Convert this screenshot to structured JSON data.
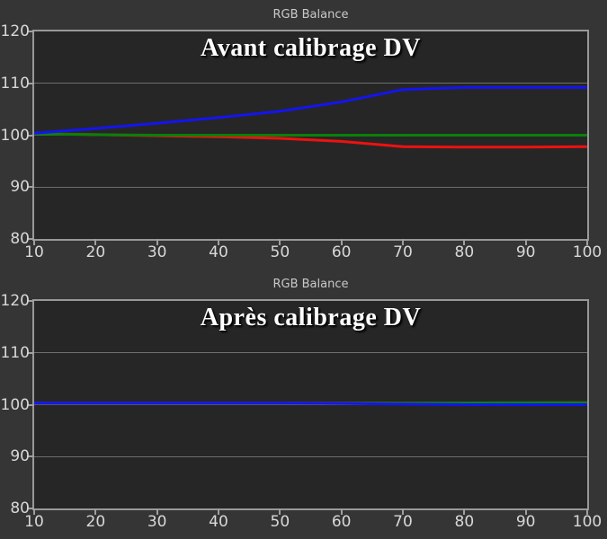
{
  "page": {
    "background": "#353535",
    "plot_background": "#262626",
    "grid_color": "#6f6f6f",
    "border_color": "#989898",
    "tick_color": "#a0a0a0",
    "label_color": "#d8d8d8",
    "header_color": "#c9c9c9",
    "title_color": "#ffffff"
  },
  "chart_data": [
    {
      "type": "line",
      "header": "RGB Balance",
      "title": "Avant calibrage DV",
      "xlabel": "",
      "ylabel": "",
      "xlim": [
        10,
        100
      ],
      "ylim": [
        80,
        120
      ],
      "xticks": [
        10,
        20,
        30,
        40,
        50,
        60,
        70,
        80,
        90,
        100
      ],
      "yticks": [
        80,
        90,
        100,
        110,
        120
      ],
      "grid": true,
      "legend": "none",
      "x": [
        10,
        20,
        30,
        40,
        50,
        60,
        70,
        80,
        90,
        100
      ],
      "series": [
        {
          "name": "red",
          "color": "#ee1111",
          "values": [
            100.3,
            100.1,
            99.9,
            99.7,
            99.4,
            98.8,
            97.8,
            97.7,
            97.7,
            97.8
          ]
        },
        {
          "name": "green",
          "color": "#0a800a",
          "values": [
            100.25,
            100.1,
            100.0,
            100.0,
            100.0,
            100.0,
            100.0,
            100.0,
            100.0,
            100.0
          ]
        },
        {
          "name": "blue",
          "color": "#1414f0",
          "values": [
            100.4,
            101.3,
            102.3,
            103.4,
            104.6,
            106.4,
            108.8,
            109.2,
            109.2,
            109.2
          ]
        }
      ]
    },
    {
      "type": "line",
      "header": "RGB Balance",
      "title": "Après calibrage DV",
      "xlabel": "",
      "ylabel": "",
      "xlim": [
        10,
        100
      ],
      "ylim": [
        80,
        120
      ],
      "xticks": [
        10,
        20,
        30,
        40,
        50,
        60,
        70,
        80,
        90,
        100
      ],
      "yticks": [
        80,
        90,
        100,
        110,
        120
      ],
      "grid": true,
      "legend": "none",
      "x": [
        10,
        20,
        30,
        40,
        50,
        60,
        70,
        80,
        90,
        100
      ],
      "series": [
        {
          "name": "red",
          "color": "#ee1111",
          "values": [
            100.3,
            100.3,
            100.3,
            100.3,
            100.3,
            100.3,
            100.3,
            100.3,
            100.35,
            100.4
          ]
        },
        {
          "name": "green",
          "color": "#0a800a",
          "values": [
            100.3,
            100.3,
            100.3,
            100.3,
            100.3,
            100.3,
            100.3,
            100.35,
            100.4,
            100.4
          ]
        },
        {
          "name": "blue",
          "color": "#1414f0",
          "values": [
            100.3,
            100.3,
            100.3,
            100.3,
            100.3,
            100.25,
            100.1,
            100.0,
            100.0,
            100.0
          ]
        }
      ]
    }
  ]
}
